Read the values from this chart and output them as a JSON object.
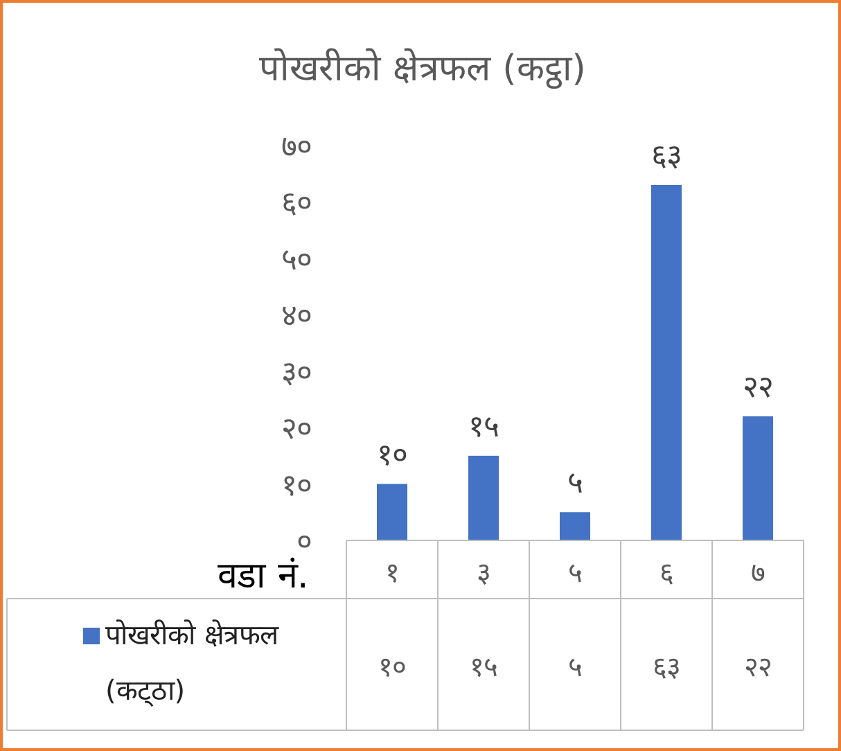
{
  "chart_data": {
    "type": "bar",
    "title": "पोखरीको क्षेत्रफल (कट्ठा)",
    "xlabel": "वडा नं.",
    "categories": [
      "१",
      "३",
      "५",
      "६",
      "७"
    ],
    "series": [
      {
        "name": "पोखरीको क्षेत्रफल (कट्‌ठा)",
        "color": "#4472c4",
        "values": [
          10,
          15,
          5,
          63,
          22
        ],
        "value_labels": [
          "१०",
          "१५",
          "५",
          "६३",
          "२२"
        ]
      }
    ],
    "ylim": [
      0,
      70
    ],
    "yticks": [
      {
        "value": 0,
        "label": "०"
      },
      {
        "value": 10,
        "label": "१०"
      },
      {
        "value": 20,
        "label": "२०"
      },
      {
        "value": 30,
        "label": "३०"
      },
      {
        "value": 40,
        "label": "४०"
      },
      {
        "value": 50,
        "label": "५०"
      },
      {
        "value": 60,
        "label": "६०"
      },
      {
        "value": 70,
        "label": "७०"
      }
    ],
    "grid": false,
    "legend": "bottom"
  }
}
